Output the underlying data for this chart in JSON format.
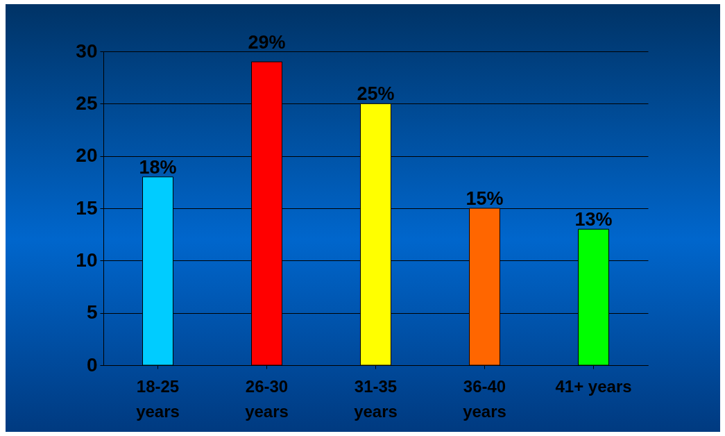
{
  "chart_data": {
    "type": "bar",
    "categories": [
      "18-25\nyears",
      "26-30\nyears",
      "31-35\nyears",
      "36-40\nyears",
      "41+ years"
    ],
    "values": [
      18,
      29,
      25,
      15,
      13
    ],
    "colors": [
      "#00ccff",
      "#ff0000",
      "#ffff00",
      "#ff6600",
      "#00ff00"
    ],
    "value_labels": [
      "18%",
      "29%",
      "25%",
      "15%",
      "13%"
    ],
    "ylim": [
      0,
      30
    ],
    "yticks": [
      0,
      5,
      10,
      15,
      20,
      25,
      30
    ],
    "grid": "y"
  }
}
